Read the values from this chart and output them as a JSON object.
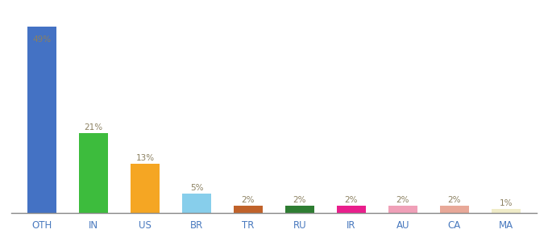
{
  "categories": [
    "OTH",
    "IN",
    "US",
    "BR",
    "TR",
    "RU",
    "IR",
    "AU",
    "CA",
    "MA"
  ],
  "values": [
    49,
    21,
    13,
    5,
    2,
    2,
    2,
    2,
    2,
    1
  ],
  "bar_colors": [
    "#4472c4",
    "#3dbc3d",
    "#f5a623",
    "#87ceeb",
    "#c0622a",
    "#2e7d32",
    "#e91e8c",
    "#f0a0b8",
    "#e8a898",
    "#f0ecc8"
  ],
  "ylim": [
    0,
    54
  ],
  "label_color": "#8b8060",
  "tick_color": "#4a7abf",
  "background_color": "#ffffff",
  "bar_width": 0.55,
  "label_fontsize": 7.5,
  "tick_fontsize": 8.5
}
